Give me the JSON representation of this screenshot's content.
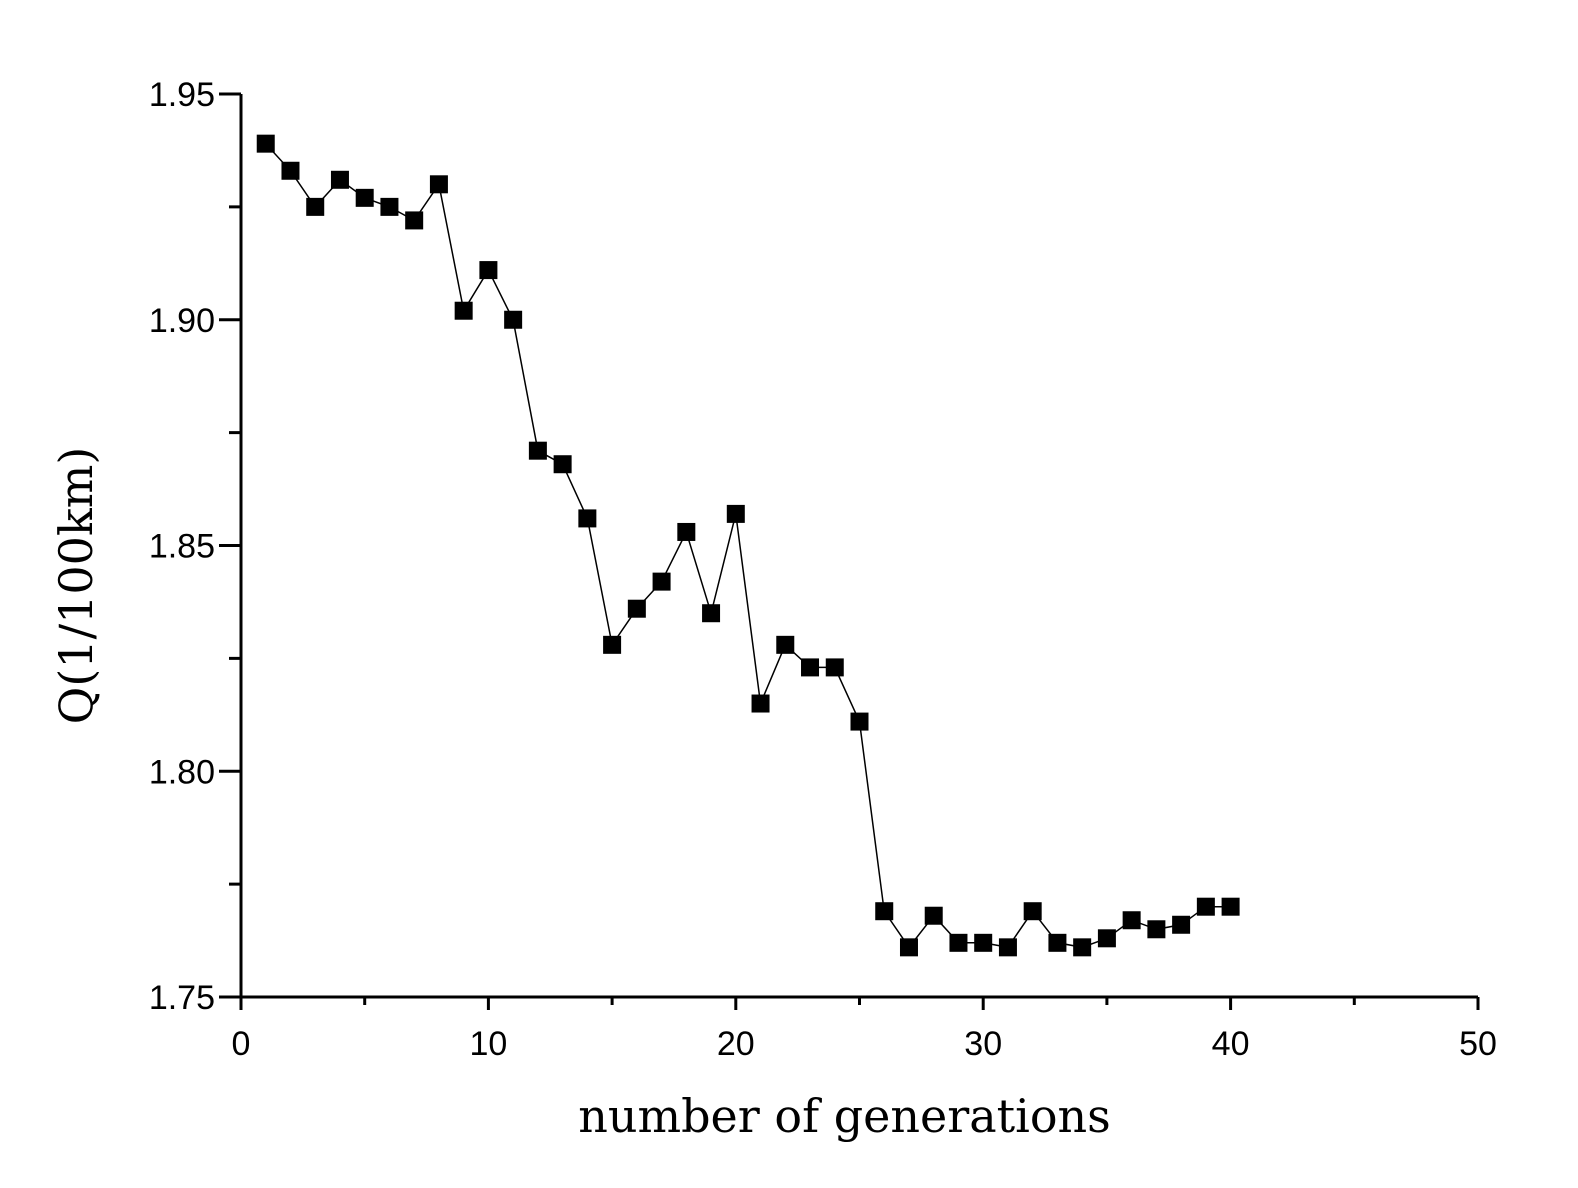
{
  "chart_data": {
    "type": "line",
    "title": "",
    "xlabel": "number of generations",
    "ylabel": "Q(1/100km)",
    "xlim": [
      0,
      50
    ],
    "ylim": [
      1.75,
      1.95
    ],
    "x_ticks": [
      0,
      10,
      20,
      30,
      40,
      50
    ],
    "x_tick_labels": [
      "0",
      "10",
      "20",
      "30",
      "40",
      "50"
    ],
    "y_ticks": [
      1.75,
      1.8,
      1.85,
      1.9,
      1.95
    ],
    "y_tick_labels": [
      "1.75",
      "1.80",
      "1.85",
      "1.90",
      "1.95"
    ],
    "grid": false,
    "marker": "square",
    "line_color": "#000000",
    "marker_color": "#000000",
    "series": [
      {
        "x": [
          1,
          2,
          3,
          4,
          5,
          6,
          7,
          8,
          9,
          10,
          11,
          12,
          13,
          14,
          15,
          16,
          17,
          18,
          19,
          20,
          21,
          22,
          23,
          24,
          25,
          26,
          27,
          28,
          29,
          30,
          31,
          32,
          33,
          34,
          35,
          36,
          37,
          38,
          39,
          40
        ],
        "values": [
          1.939,
          1.933,
          1.925,
          1.931,
          1.927,
          1.925,
          1.922,
          1.93,
          1.902,
          1.911,
          1.9,
          1.871,
          1.868,
          1.856,
          1.828,
          1.836,
          1.842,
          1.853,
          1.835,
          1.857,
          1.815,
          1.828,
          1.823,
          1.823,
          1.811,
          1.769,
          1.761,
          1.768,
          1.762,
          1.762,
          1.761,
          1.769,
          1.762,
          1.761,
          1.763,
          1.767,
          1.765,
          1.766,
          1.77,
          1.77
        ]
      }
    ]
  }
}
